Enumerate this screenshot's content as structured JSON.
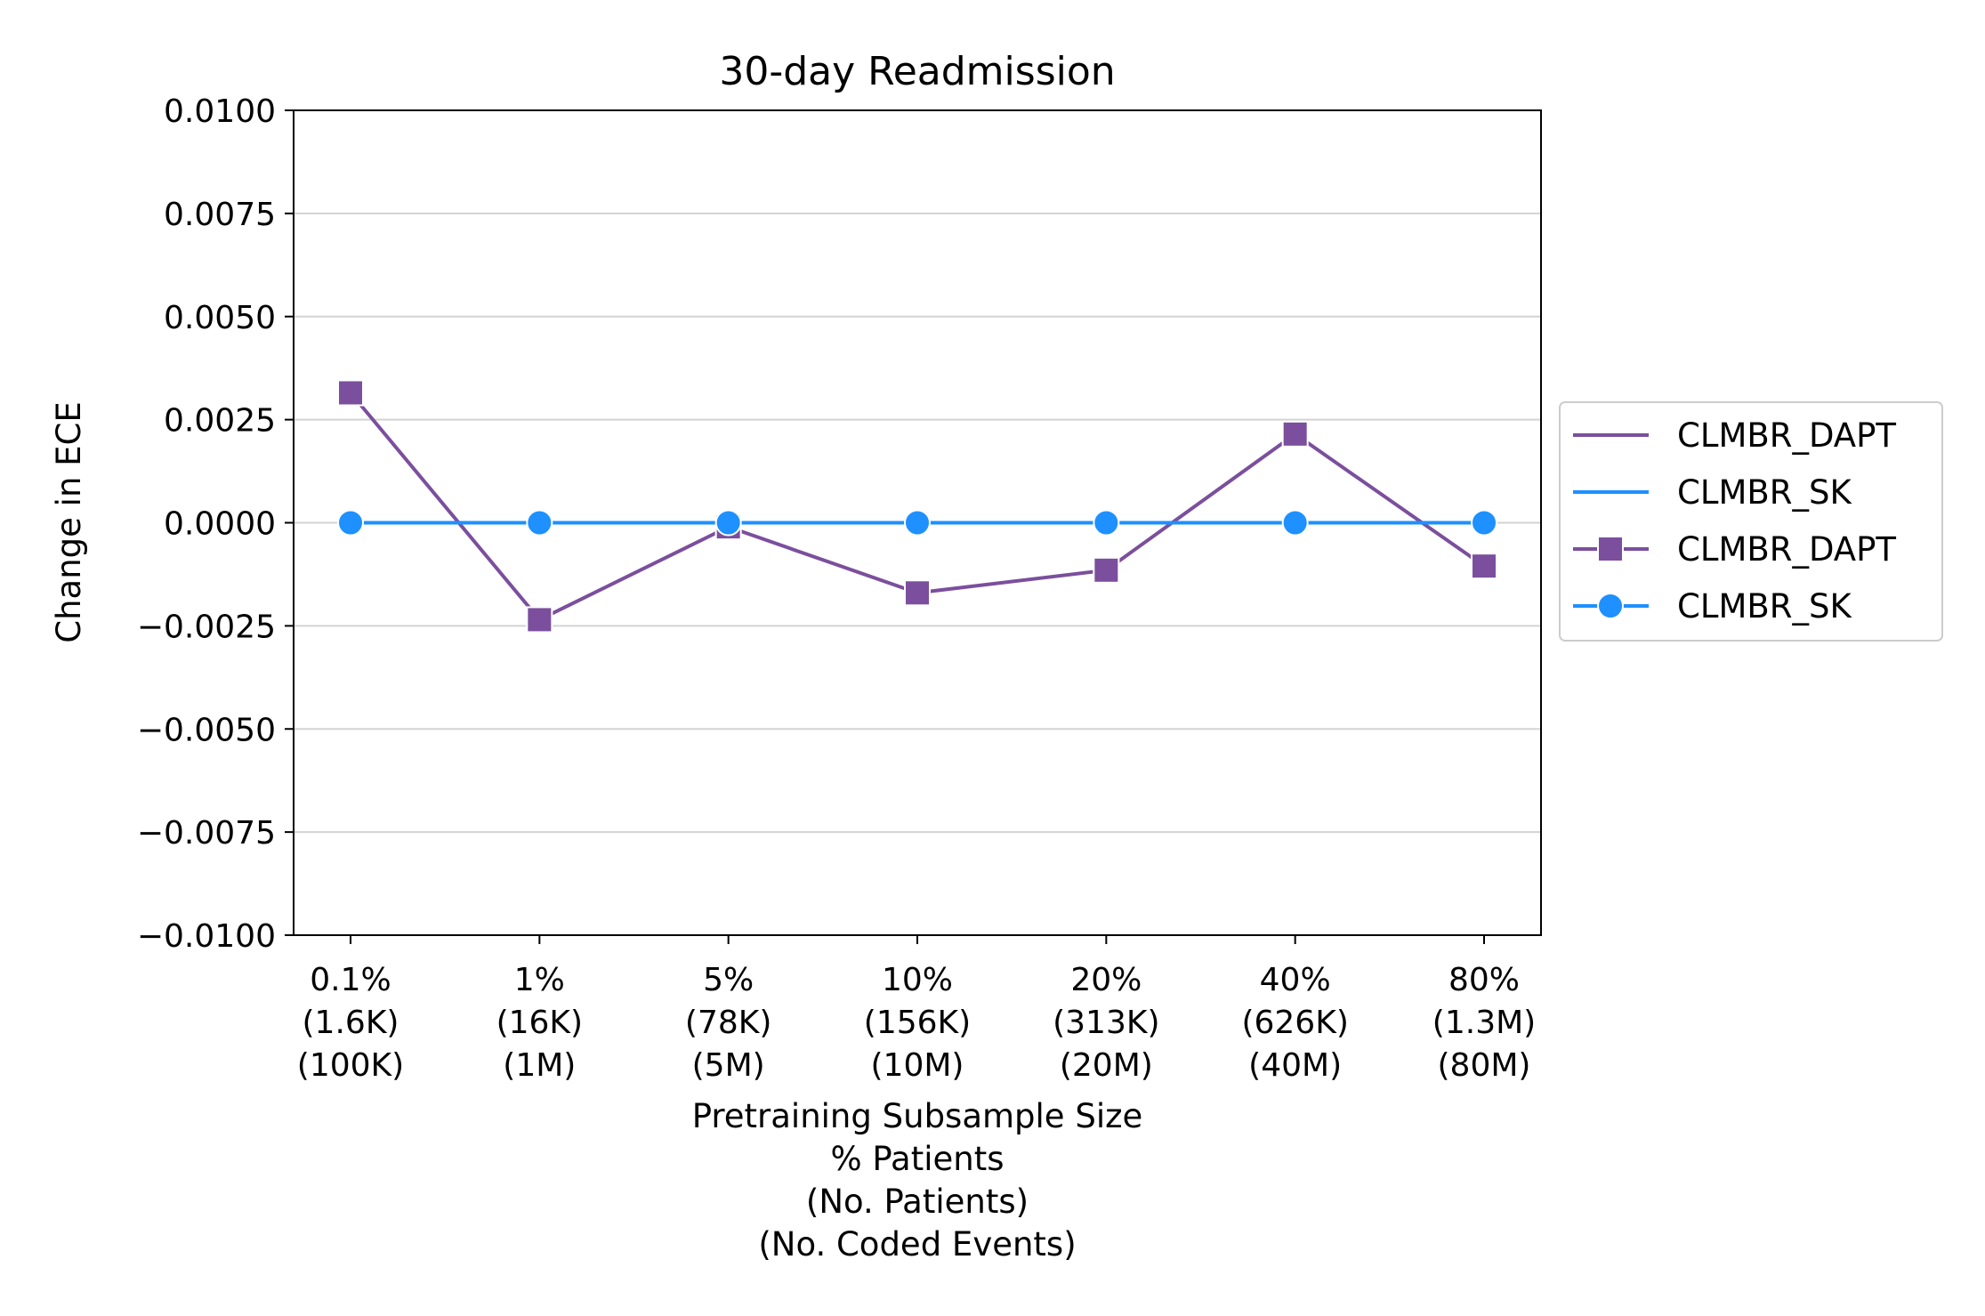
{
  "chart_data": {
    "type": "line",
    "title": "30-day Readmission",
    "xlabel": [
      "Pretraining Subsample Size",
      "% Patients",
      "(No. Patients)",
      "(No. Coded Events)"
    ],
    "ylabel": "Change in ECE",
    "ylim": [
      -0.01,
      0.01
    ],
    "yticks": [
      -0.01,
      -0.0075,
      -0.005,
      -0.0025,
      0.0,
      0.0025,
      0.005,
      0.0075,
      0.01
    ],
    "ytick_labels": [
      "−0.0100",
      "−0.0075",
      "−0.0050",
      "−0.0025",
      "0.0000",
      "0.0025",
      "0.0050",
      "0.0075",
      "0.0100"
    ],
    "categories": [
      [
        "0.1%",
        "(1.6K)",
        "(100K)"
      ],
      [
        "1%",
        "(16K)",
        "(1M)"
      ],
      [
        "5%",
        "(78K)",
        "(5M)"
      ],
      [
        "10%",
        "(156K)",
        "(10M)"
      ],
      [
        "20%",
        "(313K)",
        "(20M)"
      ],
      [
        "40%",
        "(626K)",
        "(40M)"
      ],
      [
        "80%",
        "(1.3M)",
        "(80M)"
      ]
    ],
    "grid": "horizontal",
    "legend_position": "right",
    "series": [
      {
        "name": "CLMBR_DAPT",
        "color": "#7b4f9d",
        "marker": "square",
        "values": [
          0.00315,
          -0.00235,
          -0.0001,
          -0.0017,
          -0.00115,
          0.00215,
          -0.00105
        ]
      },
      {
        "name": "CLMBR_SK",
        "color": "#1e90ff",
        "marker": "circle",
        "values": [
          0.0,
          0.0,
          0.0,
          0.0,
          0.0,
          0.0,
          0.0
        ]
      }
    ],
    "legend_entries": [
      {
        "label": "CLMBR_DAPT",
        "color": "#7b4f9d",
        "marker": "none"
      },
      {
        "label": "CLMBR_SK",
        "color": "#1e90ff",
        "marker": "none"
      },
      {
        "label": "CLMBR_DAPT",
        "color": "#7b4f9d",
        "marker": "square"
      },
      {
        "label": "CLMBR_SK",
        "color": "#1e90ff",
        "marker": "circle"
      }
    ]
  }
}
